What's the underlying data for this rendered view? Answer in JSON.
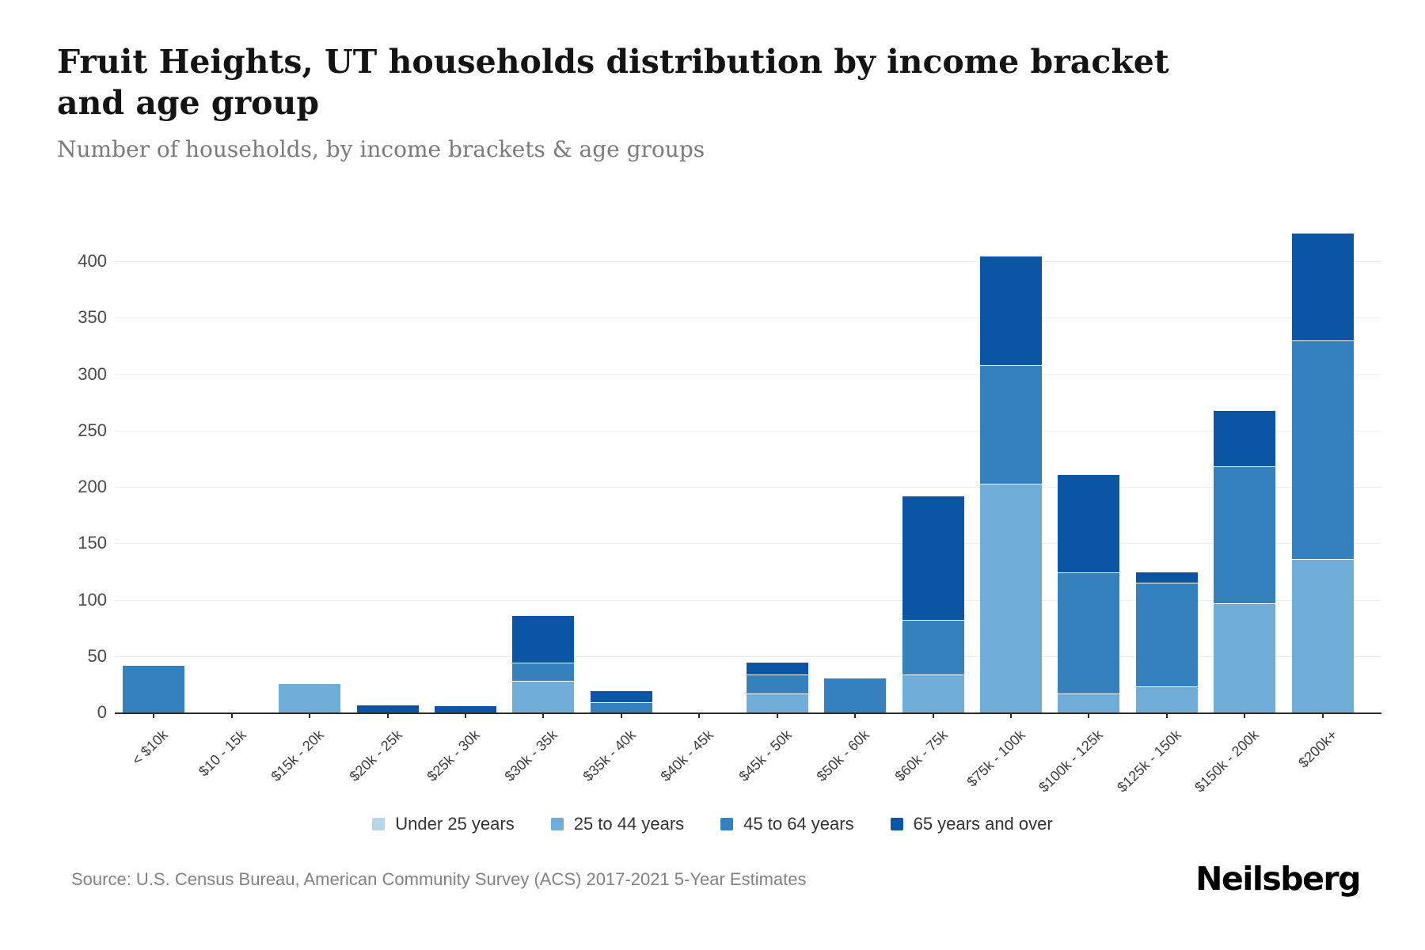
{
  "header": {
    "title": "Fruit Heights, UT households distribution by income bracket and age group",
    "subtitle": "Number of households, by income brackets & age groups"
  },
  "chart_data": {
    "type": "bar",
    "stacked": true,
    "title": "Fruit Heights, UT households distribution by income bracket and age group",
    "subtitle": "Number of households, by income brackets & age groups",
    "xlabel": "",
    "ylabel": "",
    "ylim": [
      0,
      400
    ],
    "ytick_step": 50,
    "grid": "horizontal",
    "legend_position": "bottom",
    "categories": [
      "< $10k",
      "$10 - 15k",
      "$15k - 20k",
      "$20k - 25k",
      "$25k - 30k",
      "$30k - 35k",
      "$35k - 40k",
      "$40k - 45k",
      "$45k - 50k",
      "$50k - 60k",
      "$60k - 75k",
      "$75k - 100k",
      "$100k - 125k",
      "$125k - 150k",
      "$150k - 200k",
      "$200k+"
    ],
    "series": [
      {
        "name": "Under 25 years",
        "color": "#b9d5ea",
        "values": [
          0,
          0,
          0,
          0,
          0,
          0,
          0,
          0,
          0,
          0,
          0,
          0,
          0,
          0,
          0,
          0
        ]
      },
      {
        "name": "25 to 44 years",
        "color": "#6fadd8",
        "values": [
          0,
          0,
          26,
          0,
          0,
          28,
          0,
          0,
          17,
          0,
          34,
          203,
          17,
          23,
          97,
          136
        ]
      },
      {
        "name": "45 to 64 years",
        "color": "#3481be",
        "values": [
          42,
          0,
          0,
          0,
          0,
          16,
          9,
          0,
          17,
          31,
          48,
          105,
          107,
          92,
          121,
          194
        ]
      },
      {
        "name": "65 years and over",
        "color": "#0b56a4",
        "values": [
          0,
          0,
          0,
          7,
          6,
          42,
          11,
          0,
          11,
          0,
          110,
          97,
          87,
          10,
          50,
          95
        ]
      }
    ]
  },
  "footer": {
    "source": "Source: U.S. Census Bureau, American Community Survey (ACS) 2017-2021 5-Year Estimates",
    "brand": "Neilsberg"
  }
}
